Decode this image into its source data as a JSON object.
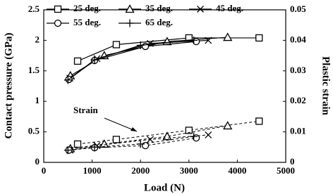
{
  "chart_data": {
    "type": "line",
    "x_label": "Load (N)",
    "y_label": "Contact pressure (GPa)",
    "y2_label": "Plastic strain",
    "annotation": "Strain",
    "xlim": [
      0,
      5000
    ],
    "xticks": [
      0,
      1000,
      2000,
      3000,
      4000,
      5000
    ],
    "ylim": [
      0,
      2.5
    ],
    "yticks": [
      0,
      0.5,
      1,
      1.5,
      2,
      2.5
    ],
    "y2lim": [
      0,
      0.05
    ],
    "y2ticks": [
      0,
      0.01,
      0.02,
      0.03,
      0.04,
      0.05
    ],
    "series": [
      {
        "name": "25 deg.",
        "marker": "square",
        "color": "#000000",
        "x": [
          700,
          1500,
          3000,
          4450
        ],
        "values": [
          1.66,
          1.93,
          2.04,
          2.04
        ],
        "strain": {
          "axis": "y2",
          "values": [
            0.006,
            0.0075,
            0.0105,
            0.0135
          ]
        }
      },
      {
        "name": "35 deg.",
        "marker": "triangle",
        "color": "#000000",
        "x": [
          550,
          1250,
          2550,
          3800
        ],
        "values": [
          1.42,
          1.75,
          1.98,
          2.05
        ],
        "strain": {
          "axis": "y2",
          "values": [
            0.0045,
            0.006,
            0.0085,
            0.012
          ]
        }
      },
      {
        "name": "45 deg.",
        "marker": "x",
        "color": "#000000",
        "x": [
          540,
          1100,
          2200,
          3400
        ],
        "values": [
          1.38,
          1.7,
          1.95,
          2.0
        ],
        "strain": {
          "axis": "y2",
          "values": [
            0.004,
            0.0055,
            0.0075,
            0.009
          ]
        }
      },
      {
        "name": "55 deg.",
        "marker": "circle",
        "color": "#000000",
        "x": [
          520,
          1050,
          2100,
          3150
        ],
        "values": [
          1.36,
          1.67,
          1.9,
          1.98
        ],
        "strain": {
          "axis": "y2",
          "values": [
            0.004,
            0.0048,
            0.0055,
            0.008
          ]
        }
      },
      {
        "name": "65 deg.",
        "marker": "plus",
        "color": "#000000",
        "x": [
          500,
          1050,
          2000,
          3100
        ],
        "values": [
          1.35,
          1.68,
          1.92,
          2.0
        ],
        "strain": {
          "axis": "y2",
          "values": [
            0.004,
            0.005,
            0.006,
            0.0085
          ]
        }
      }
    ]
  }
}
